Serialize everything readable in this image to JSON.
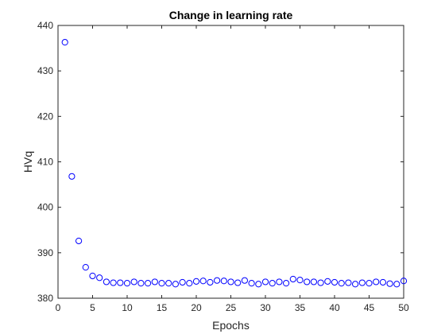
{
  "chart_data": {
    "type": "scatter",
    "title": "Change in learning rate",
    "xlabel": "Epochs",
    "ylabel": "HVq",
    "xlim": [
      0,
      50
    ],
    "ylim": [
      380,
      440
    ],
    "xticks": [
      0,
      5,
      10,
      15,
      20,
      25,
      30,
      35,
      40,
      45,
      50
    ],
    "yticks": [
      380,
      390,
      400,
      410,
      420,
      430,
      440
    ],
    "grid": false,
    "legend": "none",
    "marker": "open-circle",
    "marker_color": "#0000ff",
    "series": [
      {
        "x": [
          1,
          2,
          3,
          4,
          5,
          6,
          7,
          8,
          9,
          10,
          11,
          12,
          13,
          14,
          15,
          16,
          17,
          18,
          19,
          20,
          21,
          22,
          23,
          24,
          25,
          26,
          27,
          28,
          29,
          30,
          31,
          32,
          33,
          34,
          35,
          36,
          37,
          38,
          39,
          40,
          41,
          42,
          43,
          44,
          45,
          46,
          47,
          48,
          49,
          50
        ],
        "y": [
          436.3,
          406.8,
          392.6,
          386.8,
          384.9,
          384.5,
          383.6,
          383.4,
          383.4,
          383.3,
          383.6,
          383.3,
          383.3,
          383.6,
          383.3,
          383.3,
          383.1,
          383.5,
          383.3,
          383.7,
          383.8,
          383.5,
          383.9,
          383.8,
          383.6,
          383.4,
          383.9,
          383.3,
          383.1,
          383.6,
          383.3,
          383.6,
          383.3,
          384.2,
          384.0,
          383.6,
          383.6,
          383.4,
          383.7,
          383.5,
          383.3,
          383.4,
          383.1,
          383.4,
          383.3,
          383.6,
          383.5,
          383.2,
          383.1,
          383.8
        ]
      }
    ]
  }
}
